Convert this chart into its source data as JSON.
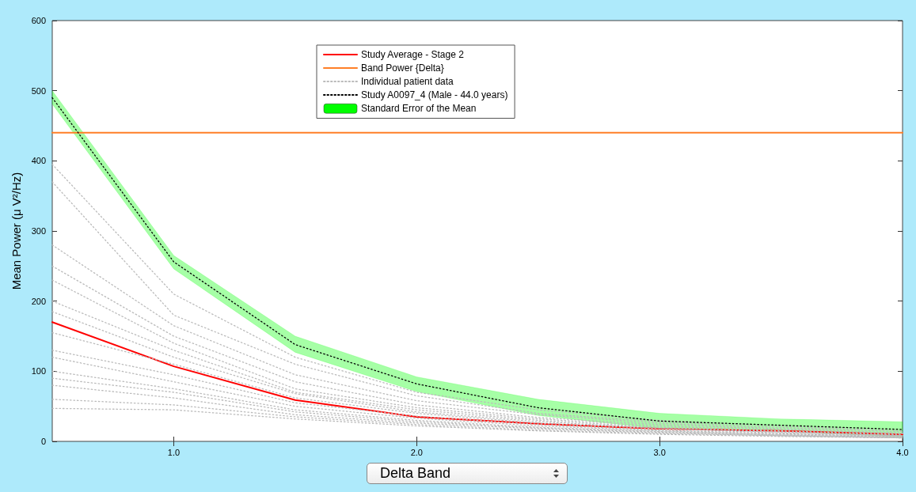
{
  "chart_data": {
    "type": "line",
    "ylabel": "Mean Power (μ V²/Hz)",
    "x": [
      0.5,
      1.0,
      1.5,
      2.0,
      2.5,
      3.0,
      3.5,
      4.0
    ],
    "xlim": [
      0.5,
      4.0
    ],
    "xticks": [
      {
        "value": 1,
        "label": "1.0"
      },
      {
        "value": 2,
        "label": "2.0"
      },
      {
        "value": 3,
        "label": "3.0"
      },
      {
        "value": 4,
        "label": "4.0"
      }
    ],
    "ylim": [
      0,
      600
    ],
    "yticks": [
      0,
      100,
      200,
      300,
      400,
      500,
      600
    ],
    "grid": false,
    "legend": "top",
    "marker": "none",
    "series": [
      {
        "name": "Study Average - Stage 2",
        "color": "#ff0000",
        "line_style": "solid",
        "values": [
          170,
          107,
          59,
          35,
          25,
          18,
          15,
          10
        ]
      },
      {
        "name": "Band Power {Delta}",
        "color": "#ff7f27",
        "line_style": "solid",
        "values": [
          440,
          440,
          440,
          440,
          440,
          440,
          440,
          440
        ]
      },
      {
        "name": "Individual patient data",
        "color": "#bbbbbb",
        "line_style": "dotted",
        "values": [
          395,
          210,
          120,
          70,
          45,
          30,
          22,
          15
        ]
      },
      {
        "color": "#bbbbbb",
        "line_style": "dotted",
        "values": [
          370,
          180,
          110,
          65,
          40,
          28,
          20,
          14
        ]
      },
      {
        "color": "#bbbbbb",
        "line_style": "dotted",
        "values": [
          280,
          165,
          95,
          58,
          38,
          26,
          18,
          12
        ]
      },
      {
        "color": "#bbbbbb",
        "line_style": "dotted",
        "values": [
          250,
          150,
          85,
          52,
          34,
          24,
          17,
          11
        ]
      },
      {
        "color": "#bbbbbb",
        "line_style": "dotted",
        "values": [
          230,
          140,
          75,
          48,
          32,
          22,
          15,
          10
        ]
      },
      {
        "color": "#bbbbbb",
        "line_style": "dotted",
        "values": [
          200,
          130,
          70,
          45,
          30,
          20,
          14,
          9
        ]
      },
      {
        "color": "#bbbbbb",
        "line_style": "dotted",
        "values": [
          185,
          120,
          68,
          42,
          28,
          19,
          13,
          8
        ]
      },
      {
        "color": "#bbbbbb",
        "line_style": "dotted",
        "values": [
          155,
          110,
          62,
          40,
          26,
          18,
          12,
          8
        ]
      },
      {
        "color": "#bbbbbb",
        "line_style": "dotted",
        "values": [
          130,
          95,
          55,
          36,
          24,
          16,
          11,
          7
        ]
      },
      {
        "color": "#bbbbbb",
        "line_style": "dotted",
        "values": [
          120,
          85,
          50,
          33,
          22,
          15,
          10,
          7
        ]
      },
      {
        "color": "#bbbbbb",
        "line_style": "dotted",
        "values": [
          100,
          75,
          45,
          30,
          20,
          14,
          9,
          6
        ]
      },
      {
        "color": "#bbbbbb",
        "line_style": "dotted",
        "values": [
          90,
          70,
          42,
          28,
          19,
          13,
          9,
          6
        ]
      },
      {
        "color": "#bbbbbb",
        "line_style": "dotted",
        "values": [
          80,
          62,
          38,
          26,
          18,
          12,
          8,
          5
        ]
      },
      {
        "color": "#bbbbbb",
        "line_style": "dotted",
        "values": [
          60,
          52,
          35,
          24,
          16,
          11,
          8,
          5
        ]
      },
      {
        "color": "#bbbbbb",
        "line_style": "dotted",
        "values": [
          47,
          45,
          32,
          22,
          15,
          10,
          7,
          5
        ]
      },
      {
        "name": "Study A0097_4 (Male - 44.0 years)",
        "color": "#000000",
        "line_style": "dotted",
        "values": [
          490,
          256,
          138,
          82,
          48,
          29,
          23,
          17
        ]
      },
      {
        "name": "Standard Error of the Mean",
        "type": "area",
        "color": "#00ff00",
        "values": [
          null,
          null,
          null,
          null,
          null,
          null,
          null,
          null
        ],
        "lower": [
          481,
          246,
          127,
          71,
          37,
          18,
          15,
          6
        ],
        "upper": [
          500,
          265,
          150,
          92,
          60,
          40,
          32,
          28
        ]
      }
    ],
    "annotations": [
      "Delta Band"
    ]
  }
}
